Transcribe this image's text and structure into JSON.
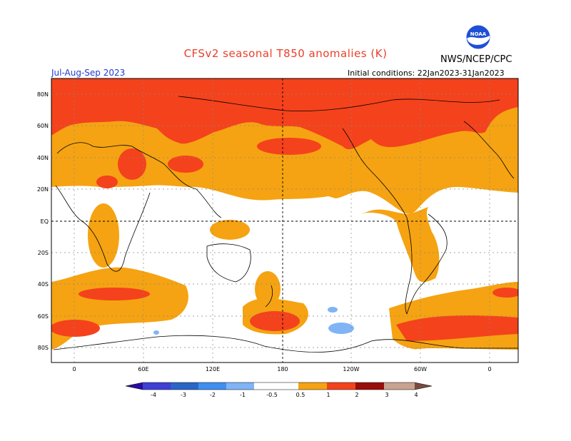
{
  "header": {
    "title": "CFSv2 seasonal T850 anomalies (K)",
    "season": "Jul-Aug-Sep 2023",
    "initial_conditions": "Initial conditions: 22Jan2023-31Jan2023",
    "agency": "NWS/NCEP/CPC",
    "logo_text": "NOAA",
    "logo_icon": "noaa-logo-icon"
  },
  "axes": {
    "lat_labels": [
      "80N",
      "60N",
      "40N",
      "20N",
      "EQ",
      "20S",
      "40S",
      "60S",
      "80S"
    ],
    "lon_labels": [
      "0",
      "60E",
      "120E",
      "180",
      "120W",
      "60W",
      "0"
    ]
  },
  "colorbar": {
    "ticks": [
      "-4",
      "-3",
      "-2",
      "-1",
      "-0.5",
      "0.5",
      "1",
      "2",
      "3",
      "4"
    ],
    "colors": [
      "#2a0da0",
      "#3f3fd6",
      "#2a66c8",
      "#3f8ff0",
      "#80b4f5",
      "#ffffff",
      "#f5a312",
      "#f4421c",
      "#9a0d0a",
      "#c9a290",
      "#7a4b3c"
    ]
  }
}
